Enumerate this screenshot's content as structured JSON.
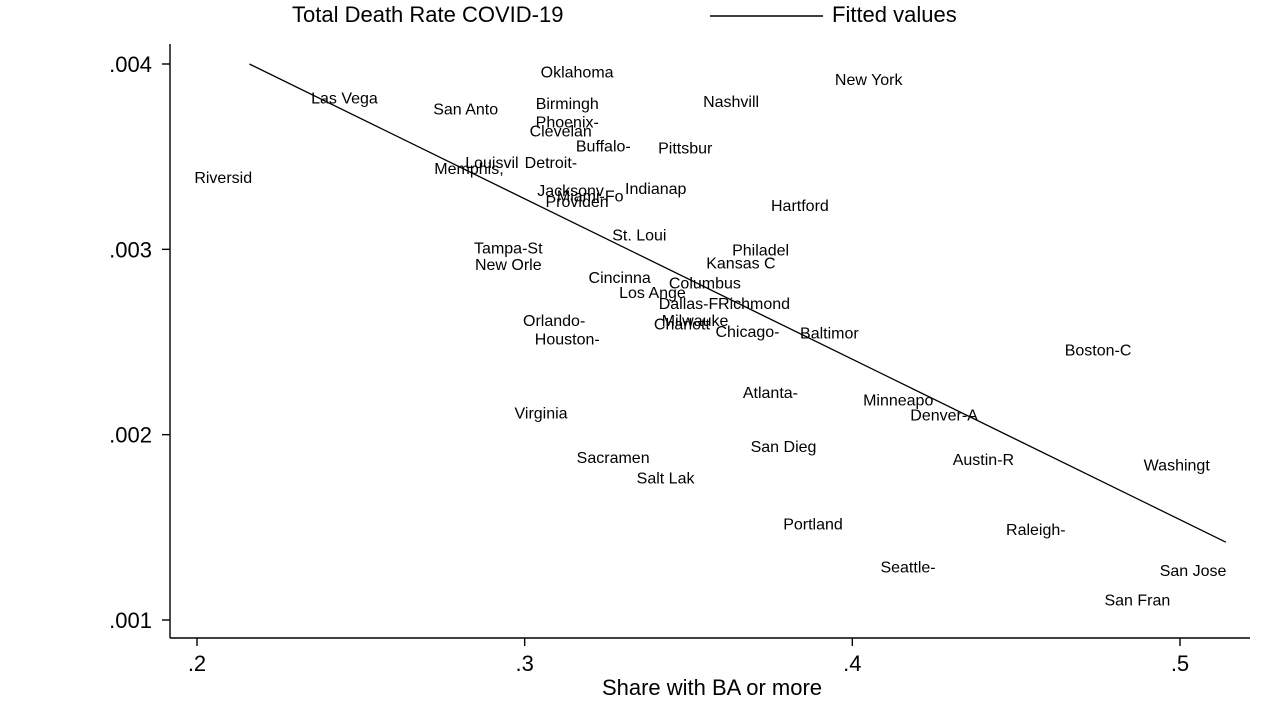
{
  "chart_data": {
    "type": "scatter",
    "xlabel": "Share with BA or more",
    "ylabel": "",
    "xlim": [
      0.192,
      0.515
    ],
    "ylim": [
      0.0009,
      0.0041
    ],
    "xticks": [
      0.2,
      0.3,
      0.4,
      0.5
    ],
    "xtick_labels": [
      ".2",
      ".3",
      ".4",
      ".5"
    ],
    "yticks": [
      0.001,
      0.002,
      0.003,
      0.004
    ],
    "ytick_labels": [
      ".001",
      ".002",
      ".003",
      ".004"
    ],
    "grid": false,
    "legend_position": "top",
    "legend": [
      {
        "label": "Total Death Rate COVID-19",
        "marker": "city-name"
      },
      {
        "label": "Fitted values",
        "marker": "line"
      }
    ],
    "series": [
      {
        "name": "Total Death Rate COVID-19",
        "points": [
          {
            "label": "Oklahoma",
            "x": 0.316,
            "y": 0.00396
          },
          {
            "label": "New York",
            "x": 0.405,
            "y": 0.00392
          },
          {
            "label": "Las Vega",
            "x": 0.245,
            "y": 0.00382
          },
          {
            "label": "San Anto",
            "x": 0.282,
            "y": 0.00376
          },
          {
            "label": "Birmingh",
            "x": 0.313,
            "y": 0.00379
          },
          {
            "label": "Nashvill",
            "x": 0.363,
            "y": 0.0038
          },
          {
            "label": "Phoenix-",
            "x": 0.313,
            "y": 0.00369
          },
          {
            "label": "Clevelan",
            "x": 0.311,
            "y": 0.00364
          },
          {
            "label": "Buffalo-",
            "x": 0.324,
            "y": 0.00356
          },
          {
            "label": "Pittsbur",
            "x": 0.349,
            "y": 0.00355
          },
          {
            "label": "Riversid",
            "x": 0.208,
            "y": 0.00339
          },
          {
            "label": "Louisvil",
            "x": 0.29,
            "y": 0.00347
          },
          {
            "label": "Detroit-",
            "x": 0.308,
            "y": 0.00347
          },
          {
            "label": "Memphis,",
            "x": 0.283,
            "y": 0.00344
          },
          {
            "label": "Jacksonv",
            "x": 0.314,
            "y": 0.00332
          },
          {
            "label": "Miami-Fo",
            "x": 0.32,
            "y": 0.00329
          },
          {
            "label": "Providen",
            "x": 0.316,
            "y": 0.00326
          },
          {
            "label": "Indianap",
            "x": 0.34,
            "y": 0.00333
          },
          {
            "label": "Hartford",
            "x": 0.384,
            "y": 0.00324
          },
          {
            "label": "St. Loui",
            "x": 0.335,
            "y": 0.00308
          },
          {
            "label": "Tampa-St",
            "x": 0.295,
            "y": 0.00301
          },
          {
            "label": "Philadel",
            "x": 0.372,
            "y": 0.003
          },
          {
            "label": "Kansas C",
            "x": 0.366,
            "y": 0.00293
          },
          {
            "label": "New Orle",
            "x": 0.295,
            "y": 0.00292
          },
          {
            "label": "Cincinna",
            "x": 0.329,
            "y": 0.00285
          },
          {
            "label": "Columbus",
            "x": 0.355,
            "y": 0.00282
          },
          {
            "label": "Los Ange",
            "x": 0.339,
            "y": 0.00277
          },
          {
            "label": "Dallas-F",
            "x": 0.35,
            "y": 0.00271
          },
          {
            "label": "Richmond",
            "x": 0.37,
            "y": 0.00271
          },
          {
            "label": "Orlando-",
            "x": 0.309,
            "y": 0.00262
          },
          {
            "label": "Milwauke",
            "x": 0.352,
            "y": 0.00262
          },
          {
            "label": "Charlott",
            "x": 0.348,
            "y": 0.0026
          },
          {
            "label": "Chicago-",
            "x": 0.368,
            "y": 0.00256
          },
          {
            "label": "Baltimor",
            "x": 0.393,
            "y": 0.00255
          },
          {
            "label": "Houston-",
            "x": 0.313,
            "y": 0.00252
          },
          {
            "label": "Boston-C",
            "x": 0.475,
            "y": 0.00246
          },
          {
            "label": "Atlanta-",
            "x": 0.375,
            "y": 0.00223
          },
          {
            "label": "Minneapo",
            "x": 0.414,
            "y": 0.00219
          },
          {
            "label": "Denver-A",
            "x": 0.428,
            "y": 0.00211
          },
          {
            "label": "Virginia",
            "x": 0.305,
            "y": 0.00212
          },
          {
            "label": "San Dieg",
            "x": 0.379,
            "y": 0.00194
          },
          {
            "label": "Sacramen",
            "x": 0.327,
            "y": 0.00188
          },
          {
            "label": "Austin-R",
            "x": 0.44,
            "y": 0.00187
          },
          {
            "label": "Washingt",
            "x": 0.499,
            "y": 0.00184
          },
          {
            "label": "Salt Lak",
            "x": 0.343,
            "y": 0.00177
          },
          {
            "label": "Portland",
            "x": 0.388,
            "y": 0.00152
          },
          {
            "label": "Raleigh-",
            "x": 0.456,
            "y": 0.00149
          },
          {
            "label": "Seattle-",
            "x": 0.417,
            "y": 0.00129
          },
          {
            "label": "San Jose",
            "x": 0.504,
            "y": 0.00127
          },
          {
            "label": "San Fran",
            "x": 0.487,
            "y": 0.00111
          }
        ]
      },
      {
        "name": "Fitted values",
        "type": "line",
        "x": [
          0.216,
          0.514
        ],
        "y": [
          0.004,
          0.00142
        ]
      }
    ]
  }
}
